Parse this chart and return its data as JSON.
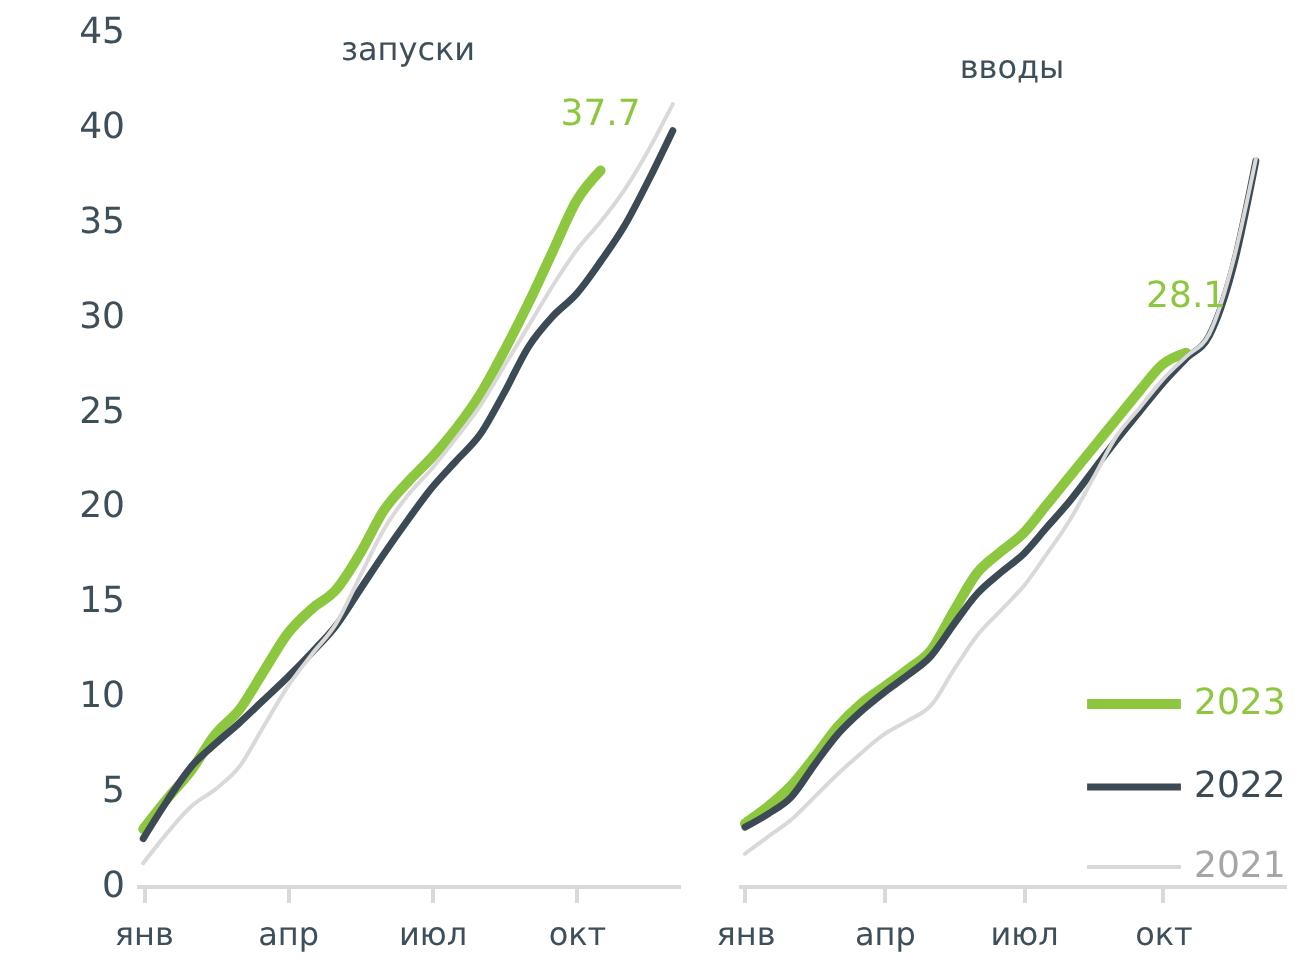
{
  "chart_data": [
    {
      "type": "line",
      "title": "запуски",
      "ylim": [
        0,
        45
      ],
      "yticks": [
        0,
        5,
        10,
        15,
        20,
        25,
        30,
        35,
        40,
        45
      ],
      "categories": [
        "янв",
        null,
        null,
        null,
        null,
        null,
        "апр",
        null,
        null,
        null,
        null,
        null,
        "июл",
        null,
        null,
        null,
        null,
        null,
        "окт",
        null,
        null,
        null,
        null
      ],
      "series": [
        {
          "color": "#8dc63f",
          "values": [
            3.0,
            4.6,
            6.1,
            8.0,
            9.3,
            11.3,
            13.3,
            14.6,
            15.6,
            17.5,
            19.8,
            21.3,
            22.6,
            24.1,
            25.9,
            28.2,
            30.7,
            33.4,
            36.1,
            37.7,
            null,
            null,
            null
          ],
          "value_labels": [
            null,
            null,
            null,
            null,
            null,
            null,
            null,
            null,
            null,
            null,
            null,
            null,
            null,
            null,
            null,
            null,
            null,
            null,
            null,
            "37.7",
            null,
            null,
            null
          ]
        },
        {
          "color": "#3b4a54",
          "values": [
            2.5,
            4.5,
            6.3,
            7.5,
            8.6,
            9.8,
            11.0,
            12.3,
            13.7,
            15.6,
            17.5,
            19.3,
            21.0,
            22.4,
            23.8,
            26.0,
            28.4,
            30.0,
            31.2,
            32.9,
            34.8,
            37.2,
            39.8
          ]
        },
        {
          "color": "#d9d9d9",
          "values": [
            1.2,
            2.8,
            4.2,
            5.1,
            6.3,
            8.4,
            10.5,
            12.2,
            13.8,
            16.3,
            18.8,
            20.6,
            22.0,
            23.6,
            25.3,
            27.4,
            29.5,
            31.6,
            33.5,
            35.0,
            36.7,
            38.8,
            41.2
          ]
        }
      ]
    },
    {
      "type": "line",
      "title": "вводы",
      "ylim": [
        0,
        45
      ],
      "yticks": [
        0,
        5,
        10,
        15,
        20,
        25,
        30,
        35,
        40,
        45
      ],
      "tick_labels": "x",
      "categories": [
        "янв",
        null,
        null,
        null,
        null,
        null,
        "апр",
        null,
        null,
        null,
        null,
        null,
        "июл",
        null,
        null,
        null,
        null,
        null,
        "окт",
        null,
        null,
        null,
        null,
        null
      ],
      "legend": "bottom right",
      "series": [
        {
          "name": "2023",
          "color": "#8dc63f",
          "values": [
            3.3,
            4.2,
            5.3,
            6.8,
            8.4,
            9.6,
            10.5,
            11.4,
            12.4,
            14.5,
            16.5,
            17.6,
            18.6,
            20.1,
            21.6,
            23.1,
            24.6,
            26.1,
            27.5,
            28.1,
            null,
            null,
            null,
            null
          ],
          "value_labels": [
            null,
            null,
            null,
            null,
            null,
            null,
            null,
            null,
            null,
            null,
            null,
            null,
            null,
            null,
            null,
            null,
            null,
            null,
            null,
            "28.1",
            null,
            null,
            null,
            null
          ]
        },
        {
          "name": "2022",
          "color": "#3b4a54",
          "values": [
            3.1,
            3.8,
            4.7,
            6.4,
            8.0,
            9.2,
            10.2,
            11.1,
            12.1,
            13.8,
            15.4,
            16.5,
            17.5,
            18.9,
            20.3,
            21.9,
            23.5,
            25.0,
            26.5,
            27.8,
            29.0,
            32.5,
            38.2,
            null
          ]
        },
        {
          "name": "2021",
          "color": "#d9d9d9",
          "values": [
            1.7,
            2.6,
            3.5,
            4.7,
            5.9,
            7.0,
            8.0,
            8.7,
            9.5,
            11.4,
            13.2,
            14.5,
            15.8,
            17.5,
            19.3,
            21.5,
            23.7,
            25.2,
            26.7,
            27.9,
            29.1,
            32.8,
            38.3,
            null
          ]
        }
      ]
    }
  ]
}
